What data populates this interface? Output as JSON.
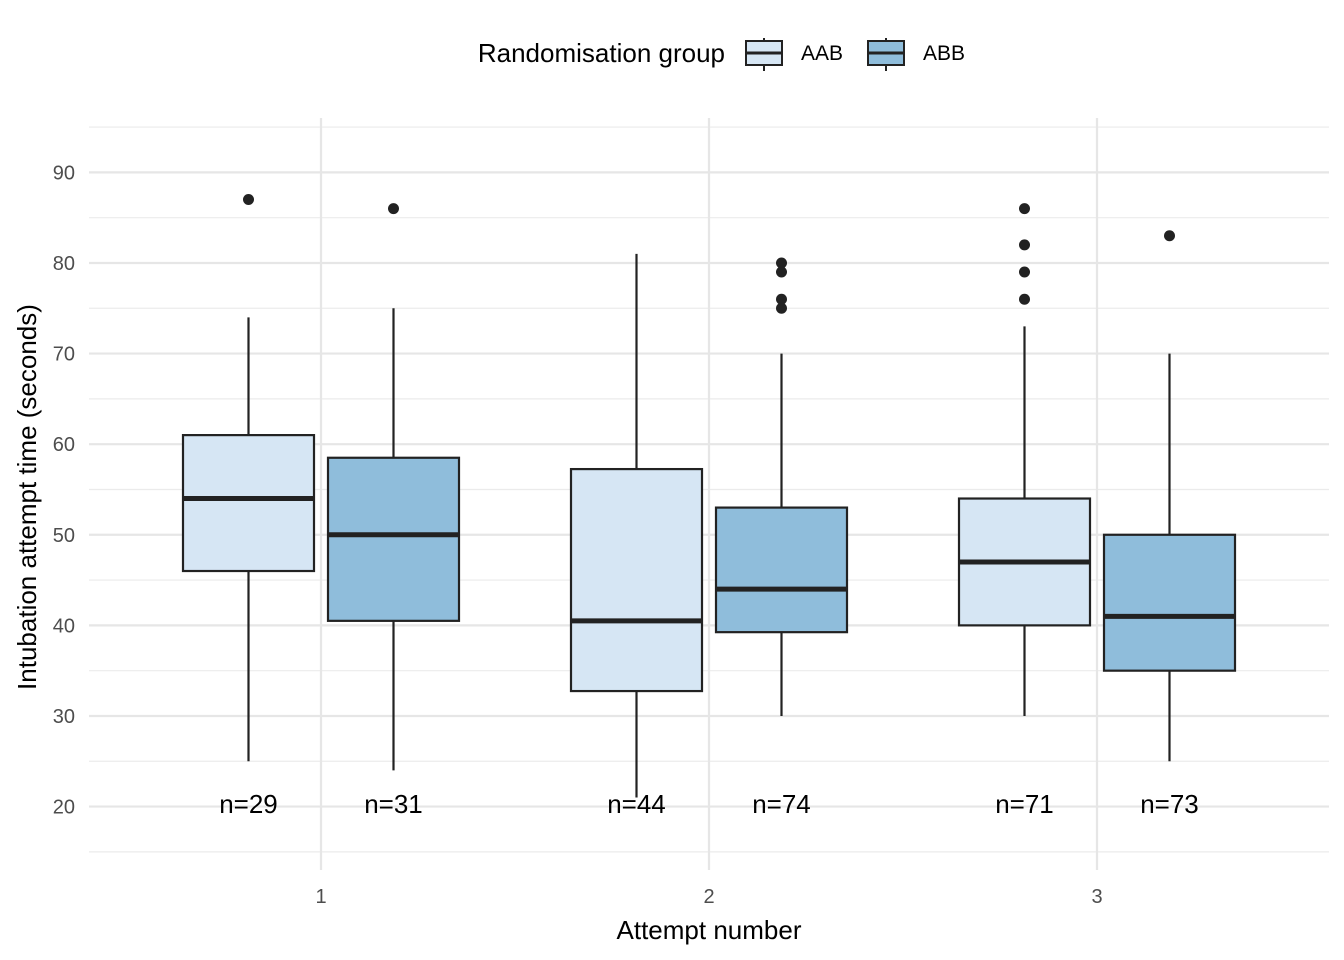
{
  "chart_data": {
    "type": "boxplot",
    "xlabel": "Attempt number",
    "ylabel": "Intubation attempt time (seconds)",
    "ylim": [
      13,
      96
    ],
    "yticks": [
      20,
      30,
      40,
      50,
      60,
      70,
      80,
      90
    ],
    "categories": [
      "1",
      "2",
      "3"
    ],
    "legend": {
      "title": "Randomisation group",
      "position": "top",
      "entries": [
        {
          "name": "AAB",
          "color": "#d6e6f4"
        },
        {
          "name": "ABB",
          "color": "#8fbddb"
        }
      ]
    },
    "series": [
      {
        "name": "AAB",
        "color": "#d6e6f4",
        "boxes": [
          {
            "category": "1",
            "whisker_low": 25,
            "q1": 46,
            "median": 54,
            "q3": 61,
            "whisker_high": 74,
            "outliers": [
              87
            ],
            "n_label": "n=29"
          },
          {
            "category": "2",
            "whisker_low": 21,
            "q1": 32.75,
            "median": 40.5,
            "q3": 57.25,
            "whisker_high": 81,
            "outliers": [],
            "n_label": "n=44"
          },
          {
            "category": "3",
            "whisker_low": 30,
            "q1": 40,
            "median": 47,
            "q3": 54,
            "whisker_high": 73,
            "outliers": [
              76,
              79,
              82,
              86
            ],
            "n_label": "n=71"
          }
        ]
      },
      {
        "name": "ABB",
        "color": "#8fbddb",
        "boxes": [
          {
            "category": "1",
            "whisker_low": 24,
            "q1": 40.5,
            "median": 50,
            "q3": 58.5,
            "whisker_high": 75,
            "outliers": [
              86
            ],
            "n_label": "n=31"
          },
          {
            "category": "2",
            "whisker_low": 30,
            "q1": 39.25,
            "median": 44,
            "q3": 53,
            "whisker_high": 70,
            "outliers": [
              75,
              76,
              79,
              80
            ],
            "n_label": "n=74"
          },
          {
            "category": "3",
            "whisker_low": 25,
            "q1": 35,
            "median": 41,
            "q3": 50,
            "whisker_high": 70,
            "outliers": [
              83
            ],
            "n_label": "n=73"
          }
        ]
      }
    ]
  }
}
